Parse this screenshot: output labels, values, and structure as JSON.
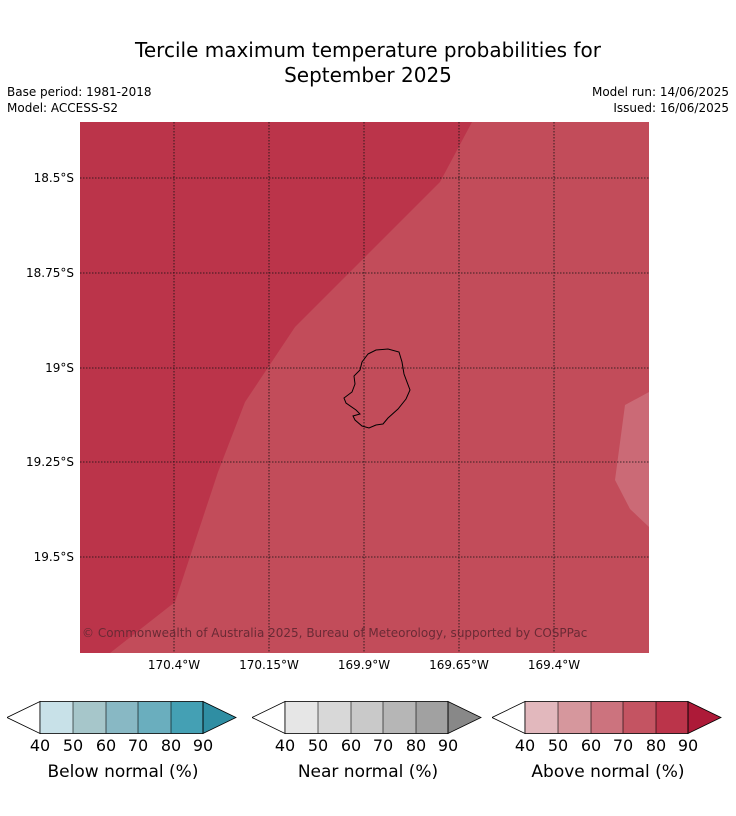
{
  "title_line1": "Tercile maximum temperature probabilities for",
  "title_line2": "September 2025",
  "meta": {
    "base_period": "Base period: 1981-2018",
    "model": "Model: ACCESS-S2",
    "model_run": "Model run: 14/06/2025",
    "issued": "Issued: 16/06/2025"
  },
  "copyright": "© Commonwealth of Australia 2025, Bureau of Meteorology, supported by COSPPac",
  "axes": {
    "lat_labels": [
      "18.5°S",
      "18.75°S",
      "19°S",
      "19.25°S",
      "19.5°S"
    ],
    "lon_labels": [
      "170.4°W",
      "170.15°W",
      "169.9°W",
      "169.65°W",
      "169.4°W"
    ]
  },
  "colors": {
    "above_80_90": "#bb344a",
    "above_70_80": "#c24c5a",
    "above_60_70": "#cb6a76"
  },
  "legends": [
    {
      "label": "Below normal (%)",
      "ticks": [
        "40",
        "50",
        "60",
        "70",
        "80",
        "90"
      ],
      "colors": [
        "#c8e1e8",
        "#a6c6ca",
        "#88b8c4",
        "#6aaebe",
        "#44a0b4"
      ],
      "arrow": "#2f8ea3"
    },
    {
      "label": "Near normal (%)",
      "ticks": [
        "40",
        "50",
        "60",
        "70",
        "80",
        "90"
      ],
      "colors": [
        "#e6e6e6",
        "#d8d8d8",
        "#c9c9c9",
        "#b6b6b6",
        "#a1a1a1"
      ],
      "arrow": "#888888"
    },
    {
      "label": "Above normal (%)",
      "ticks": [
        "40",
        "50",
        "60",
        "70",
        "80",
        "90"
      ],
      "colors": [
        "#e2b8bd",
        "#d6979d",
        "#cc737e",
        "#c45462",
        "#bb344a"
      ],
      "arrow": "#ad1a38"
    }
  ]
}
